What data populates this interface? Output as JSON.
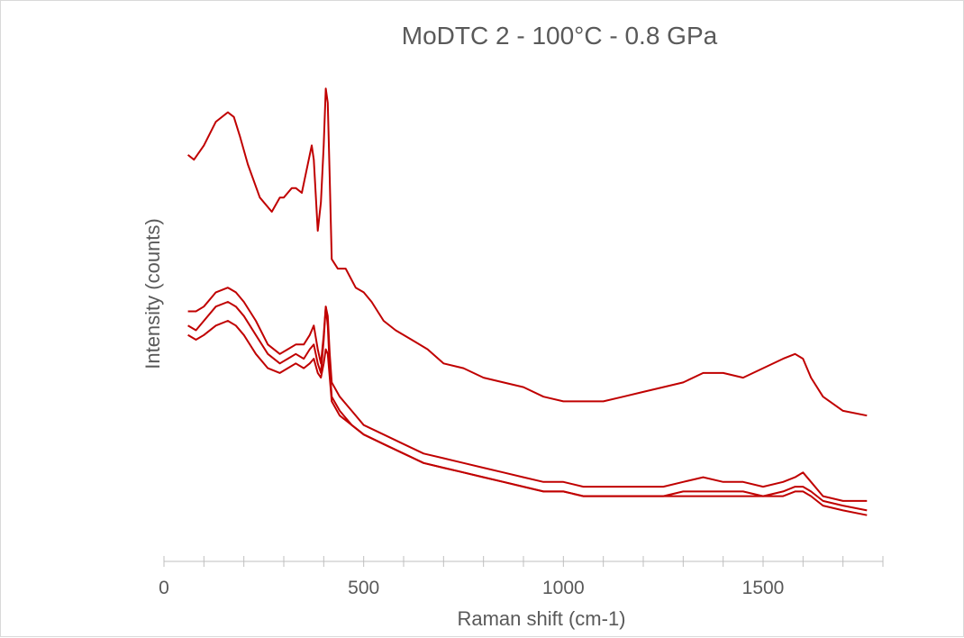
{
  "chart_data": {
    "type": "line",
    "title": "MoDTC 2 - 100°C - 0.8 GPa",
    "xlabel": "Raman shift (cm-1)",
    "ylabel": "Intensity (counts)",
    "xlim": [
      0,
      1800
    ],
    "ylim": [
      0,
      100
    ],
    "x_ticks": [
      "0",
      "500",
      "1000",
      "1500"
    ],
    "grid": false,
    "legend": "none",
    "color": "#c00000",
    "series": [
      {
        "x": [
          60,
          75,
          100,
          130,
          160,
          175,
          190,
          210,
          240,
          270,
          290,
          300,
          310,
          320,
          330,
          345,
          360,
          370,
          375,
          385,
          393,
          400,
          405,
          410,
          415,
          420,
          435,
          455,
          480,
          500,
          520,
          550,
          580,
          620,
          660,
          700,
          750,
          800,
          850,
          900,
          950,
          1000,
          1050,
          1100,
          1150,
          1200,
          1250,
          1300,
          1350,
          1400,
          1450,
          1500,
          1550,
          1580,
          1600,
          1620,
          1650,
          1700,
          1760
        ],
        "y": [
          85,
          84,
          87,
          92,
          94,
          93,
          89,
          83,
          76,
          73,
          76,
          76,
          77,
          78,
          78,
          77,
          83,
          87,
          84,
          69,
          75,
          87,
          99,
          96,
          80,
          63,
          61,
          61,
          57,
          56,
          54,
          50,
          48,
          46,
          44,
          41,
          40,
          38,
          37,
          36,
          34,
          33,
          33,
          33,
          34,
          35,
          36,
          37,
          39,
          39,
          38,
          40,
          42,
          43,
          42,
          38,
          34,
          31,
          30
        ]
      },
      {
        "x": [
          60,
          80,
          100,
          130,
          160,
          180,
          200,
          230,
          260,
          290,
          310,
          330,
          350,
          365,
          375,
          385,
          393,
          400,
          405,
          410,
          415,
          420,
          440,
          470,
          500,
          550,
          600,
          650,
          700,
          750,
          800,
          850,
          900,
          950,
          1000,
          1050,
          1100,
          1150,
          1200,
          1250,
          1300,
          1350,
          1400,
          1450,
          1500,
          1550,
          1580,
          1600,
          1620,
          1650,
          1700,
          1760
        ],
        "y": [
          52,
          52,
          53,
          56,
          57,
          56,
          54,
          50,
          45,
          43,
          44,
          45,
          45,
          47,
          49,
          44,
          41,
          47,
          53,
          51,
          43,
          37,
          34,
          31,
          28,
          26,
          24,
          22,
          21,
          20,
          19,
          18,
          17,
          16,
          16,
          15,
          15,
          15,
          15,
          15,
          16,
          17,
          16,
          16,
          15,
          16,
          17,
          18,
          16,
          13,
          12,
          12
        ]
      },
      {
        "x": [
          60,
          80,
          100,
          130,
          160,
          180,
          200,
          230,
          260,
          290,
          310,
          330,
          350,
          365,
          375,
          385,
          393,
          400,
          405,
          410,
          415,
          420,
          440,
          470,
          500,
          550,
          600,
          650,
          700,
          750,
          800,
          850,
          900,
          950,
          1000,
          1050,
          1100,
          1150,
          1200,
          1250,
          1300,
          1350,
          1400,
          1450,
          1500,
          1550,
          1580,
          1600,
          1620,
          1650,
          1700,
          1760
        ],
        "y": [
          49,
          48,
          50,
          53,
          54,
          53,
          51,
          47,
          43,
          41,
          42,
          43,
          42,
          44,
          45,
          41,
          39,
          46,
          53,
          49,
          40,
          34,
          31,
          28,
          26,
          24,
          22,
          20,
          19,
          18,
          17,
          16,
          15,
          14,
          14,
          13,
          13,
          13,
          13,
          13,
          14,
          14,
          14,
          14,
          13,
          14,
          15,
          15,
          14,
          12,
          11,
          10
        ]
      },
      {
        "x": [
          60,
          80,
          100,
          130,
          160,
          180,
          200,
          230,
          260,
          290,
          310,
          330,
          350,
          365,
          375,
          385,
          393,
          400,
          405,
          410,
          415,
          420,
          440,
          470,
          500,
          550,
          600,
          650,
          700,
          750,
          800,
          850,
          900,
          950,
          1000,
          1050,
          1100,
          1150,
          1200,
          1250,
          1300,
          1350,
          1400,
          1450,
          1500,
          1550,
          1580,
          1600,
          1620,
          1650,
          1700,
          1760
        ],
        "y": [
          47,
          46,
          47,
          49,
          50,
          49,
          47,
          43,
          40,
          39,
          40,
          41,
          40,
          41,
          42,
          39,
          38,
          41,
          44,
          43,
          38,
          33,
          30,
          28,
          26,
          24,
          22,
          20,
          19,
          18,
          17,
          16,
          15,
          14,
          14,
          13,
          13,
          13,
          13,
          13,
          13,
          13,
          13,
          13,
          13,
          13,
          14,
          14,
          13,
          11,
          10,
          9
        ]
      }
    ]
  }
}
